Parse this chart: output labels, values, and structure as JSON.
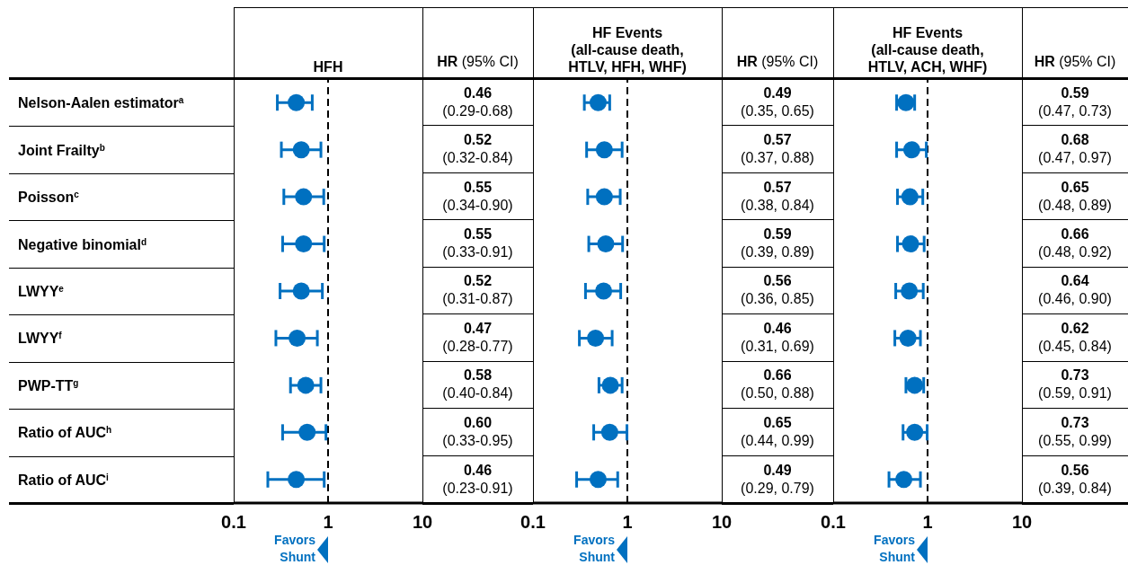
{
  "chart_data": [
    {
      "type": "scatter",
      "orientation": "horizontal",
      "title": "HFH",
      "color": "#0070c0",
      "marker": "circle",
      "log": "x",
      "xlim": [
        0.1,
        10
      ],
      "xticks": [
        0.1,
        1,
        10
      ],
      "categories": [
        "Nelson-Aalen estimator$^{a}$",
        "Joint Frailty$^{b}$",
        "Poisson$^{c}$",
        "Negative binomial$^{d}$",
        "LWYY$^{e}$",
        "LWYY$^{f}$",
        "PWP-TT$^{g}$",
        "Ratio of AUC$^{h}$",
        "Ratio of AUC$^{i}$"
      ],
      "values": [
        0.46,
        0.52,
        0.55,
        0.55,
        0.52,
        0.47,
        0.58,
        0.6,
        0.46
      ],
      "errors": [
        [
          0.29,
          0.68
        ],
        [
          0.32,
          0.84
        ],
        [
          0.34,
          0.9
        ],
        [
          0.33,
          0.91
        ],
        [
          0.31,
          0.87
        ],
        [
          0.28,
          0.77
        ],
        [
          0.4,
          0.84
        ],
        [
          0.33,
          0.95
        ],
        [
          0.23,
          0.91
        ]
      ],
      "value_labels": [
        "0.46\n(0.29-0.68)",
        "0.52\n(0.32-0.84)",
        "0.55\n(0.34-0.90)",
        "0.55\n(0.33-0.91)",
        "0.52\n(0.31-0.87)",
        "0.47\n(0.28-0.77)",
        "0.58\n(0.40-0.84)",
        "0.60\n(0.33-0.95)",
        "0.46\n(0.23-0.91)"
      ],
      "ref_lines": [
        {
          "axis": "x",
          "value": 1,
          "line_style": "dashed"
        }
      ],
      "annotations": [
        "HR (95% CI)",
        "Favors Shunt"
      ]
    },
    {
      "type": "scatter",
      "orientation": "horizontal",
      "title": "HF Events (all-cause death, HTLV, HFH, WHF)",
      "color": "#0070c0",
      "marker": "circle",
      "log": "x",
      "xlim": [
        0.1,
        10
      ],
      "xticks": [
        0.1,
        1,
        10
      ],
      "tick_labels": "x",
      "values": [
        0.49,
        0.57,
        0.57,
        0.59,
        0.56,
        0.46,
        0.66,
        0.65,
        0.49
      ],
      "errors": [
        [
          0.35,
          0.65
        ],
        [
          0.37,
          0.88
        ],
        [
          0.38,
          0.84
        ],
        [
          0.39,
          0.89
        ],
        [
          0.36,
          0.85
        ],
        [
          0.31,
          0.69
        ],
        [
          0.5,
          0.88
        ],
        [
          0.44,
          0.99
        ],
        [
          0.29,
          0.79
        ]
      ],
      "value_labels": [
        "0.49\n(0.35, 0.65)",
        "0.57\n(0.37, 0.88)",
        "0.57\n(0.38, 0.84)",
        "0.59\n(0.39, 0.89)",
        "0.56\n(0.36, 0.85)",
        "0.46\n(0.31, 0.69)",
        "0.66\n(0.50, 0.88)",
        "0.65\n(0.44, 0.99)",
        "0.49\n(0.29, 0.79)"
      ],
      "ref_lines": [
        {
          "axis": "x",
          "value": 1,
          "line_style": "dashed"
        }
      ],
      "annotations": [
        "HR (95% CI)",
        "Favors Shunt"
      ]
    },
    {
      "type": "scatter",
      "orientation": "horizontal",
      "title": "HF Events (all-cause death, HTLV, ACH, WHF)",
      "color": "#0070c0",
      "marker": "circle",
      "log": "x",
      "xlim": [
        0.1,
        10
      ],
      "xticks": [
        0.1,
        1,
        10
      ],
      "tick_labels": "x",
      "values": [
        0.59,
        0.68,
        0.65,
        0.66,
        0.64,
        0.62,
        0.73,
        0.73,
        0.56
      ],
      "errors": [
        [
          0.47,
          0.73
        ],
        [
          0.47,
          0.97
        ],
        [
          0.48,
          0.89
        ],
        [
          0.48,
          0.92
        ],
        [
          0.46,
          0.9
        ],
        [
          0.45,
          0.84
        ],
        [
          0.59,
          0.91
        ],
        [
          0.55,
          0.99
        ],
        [
          0.39,
          0.84
        ]
      ],
      "value_labels": [
        "0.59\n(0.47, 0.73)",
        "0.68\n(0.47, 0.97)",
        "0.65\n(0.48, 0.89)",
        "0.66\n(0.48, 0.92)",
        "0.64\n(0.46, 0.90)",
        "0.62\n(0.45, 0.84)",
        "0.73\n(0.59, 0.91)",
        "0.73\n(0.55, 0.99)",
        "0.56\n(0.39, 0.84)"
      ],
      "ref_lines": [
        {
          "axis": "x",
          "value": 1,
          "line_style": "dashed"
        }
      ],
      "annotations": [
        "HR (95% CI)",
        "Favors Shunt"
      ]
    }
  ]
}
